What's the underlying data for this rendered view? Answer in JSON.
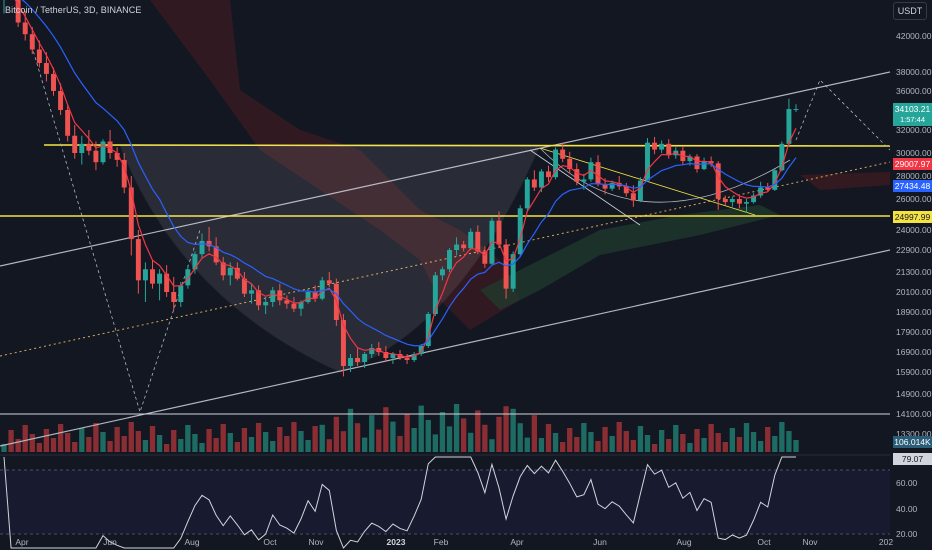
{
  "header": {
    "symbol_text": "Bitcoin / TetherUS, 3D, BINANCE",
    "currency_button": "USDT"
  },
  "colors": {
    "background": "#131722",
    "up": "#26a69a",
    "down": "#ef5350",
    "neckline": "#f5e342",
    "channel": "#b2b5be",
    "ema_fast": "#f23645",
    "ema_slow": "#2962ff",
    "rsi": "#d1d4dc"
  },
  "chart_data": {
    "type": "candlestick",
    "x_labels": [
      "Apr",
      "Jun",
      "Aug",
      "Oct",
      "Nov",
      "2023",
      "Feb",
      "Apr",
      "Jun",
      "Aug",
      "Oct",
      "Nov",
      "202"
    ],
    "y_ticks": [
      "42000.00",
      "38000.00",
      "36000.00",
      "32000.00",
      "30000.00",
      "28000.00",
      "26000.00",
      "24000.00",
      "22900.00",
      "21300.00",
      "20100.00",
      "18900.00",
      "17900.00",
      "16900.00",
      "15900.00",
      "14900.00",
      "14100.00",
      "13300.00"
    ],
    "price_tags": [
      {
        "label": "34103.21",
        "sub": "1:57:44",
        "color": "#26a69a"
      },
      {
        "label": "29007.97",
        "color": "#f23645"
      },
      {
        "label": "27434.48",
        "color": "#2962ff"
      },
      {
        "label": "24997.99",
        "color": "#f5e342"
      },
      {
        "label": "106.014K",
        "color": "#2a5d78"
      }
    ],
    "horizontal_levels": [
      30500,
      24998,
      14100
    ],
    "rsi": {
      "ticks": [
        "60.00",
        "40.00",
        "20.00"
      ],
      "value_tag": "79.07",
      "band": [
        30,
        70
      ]
    },
    "ohlc": [
      [
        46000,
        47500,
        44500,
        47000
      ],
      [
        47000,
        48500,
        46000,
        46500
      ],
      [
        46500,
        47200,
        43000,
        43500
      ],
      [
        43500,
        44800,
        41500,
        42200
      ],
      [
        42200,
        43000,
        40000,
        40500
      ],
      [
        40500,
        41500,
        38500,
        39000
      ],
      [
        39000,
        40200,
        37000,
        37800
      ],
      [
        37800,
        38500,
        35500,
        36000
      ],
      [
        36000,
        36800,
        33500,
        34000
      ],
      [
        34000,
        34500,
        31000,
        31500
      ],
      [
        31500,
        32500,
        29500,
        30000
      ],
      [
        30000,
        31500,
        29000,
        30800
      ],
      [
        30800,
        32000,
        29800,
        30200
      ],
      [
        30200,
        31000,
        28500,
        29200
      ],
      [
        29200,
        31200,
        29000,
        31000
      ],
      [
        31000,
        32000,
        29500,
        30000
      ],
      [
        30000,
        30500,
        28800,
        29400
      ],
      [
        29400,
        30000,
        26500,
        27000
      ],
      [
        27000,
        28000,
        22500,
        23500
      ],
      [
        23500,
        24000,
        20000,
        20800
      ],
      [
        20800,
        22000,
        19500,
        21500
      ],
      [
        21500,
        22200,
        20300,
        20600
      ],
      [
        20600,
        21500,
        19600,
        21200
      ],
      [
        21200,
        21800,
        19800,
        20100
      ],
      [
        20100,
        21000,
        19000,
        19500
      ],
      [
        19500,
        20700,
        19200,
        20500
      ],
      [
        20500,
        21800,
        20300,
        21500
      ],
      [
        21500,
        22800,
        21200,
        22600
      ],
      [
        22600,
        23800,
        22300,
        23400
      ],
      [
        23400,
        24200,
        22800,
        23100
      ],
      [
        23100,
        23600,
        21800,
        22000
      ],
      [
        22000,
        22400,
        20800,
        21100
      ],
      [
        21100,
        22000,
        20500,
        21600
      ],
      [
        21600,
        22000,
        20800,
        20900
      ],
      [
        20900,
        21300,
        19800,
        20000
      ],
      [
        20000,
        20600,
        19400,
        20200
      ],
      [
        20200,
        20500,
        19000,
        19300
      ],
      [
        19300,
        19800,
        18800,
        19500
      ],
      [
        19500,
        20400,
        19200,
        20200
      ],
      [
        20200,
        20600,
        19300,
        19600
      ],
      [
        19600,
        19900,
        19100,
        19400
      ],
      [
        19400,
        19800,
        18900,
        19100
      ],
      [
        19100,
        19600,
        18700,
        19500
      ],
      [
        19500,
        20300,
        19400,
        20100
      ],
      [
        20100,
        20500,
        19500,
        19700
      ],
      [
        19700,
        21000,
        19600,
        20800
      ],
      [
        20800,
        21300,
        20400,
        20600
      ],
      [
        20600,
        20900,
        18200,
        18500
      ],
      [
        18500,
        18800,
        15700,
        16200
      ],
      [
        16200,
        16800,
        15900,
        16600
      ],
      [
        16600,
        17100,
        16200,
        16400
      ],
      [
        16400,
        16900,
        16100,
        16800
      ],
      [
        16800,
        17300,
        16600,
        17100
      ],
      [
        17100,
        17400,
        16700,
        16900
      ],
      [
        16900,
        17200,
        16400,
        16600
      ],
      [
        16600,
        16900,
        16300,
        16800
      ],
      [
        16800,
        17000,
        16500,
        16600
      ],
      [
        16600,
        16800,
        16300,
        16500
      ],
      [
        16500,
        16900,
        16400,
        16800
      ],
      [
        16800,
        17300,
        16700,
        17200
      ],
      [
        17200,
        18900,
        17100,
        18800
      ],
      [
        18800,
        21300,
        18700,
        21100
      ],
      [
        21100,
        21700,
        20800,
        21500
      ],
      [
        21500,
        23000,
        21300,
        22900
      ],
      [
        22900,
        23600,
        22500,
        23200
      ],
      [
        23200,
        23400,
        22800,
        23000
      ],
      [
        23000,
        24100,
        22900,
        23900
      ],
      [
        23900,
        24300,
        22600,
        22800
      ],
      [
        22800,
        23100,
        21600,
        21900
      ],
      [
        21900,
        24800,
        21800,
        24600
      ],
      [
        24600,
        25200,
        23000,
        23200
      ],
      [
        23200,
        23500,
        19700,
        20300
      ],
      [
        20300,
        22800,
        20100,
        22600
      ],
      [
        22600,
        25600,
        22400,
        25400
      ],
      [
        25400,
        27900,
        25200,
        27700
      ],
      [
        27700,
        28500,
        26700,
        27000
      ],
      [
        27000,
        28600,
        26600,
        28400
      ],
      [
        28400,
        28900,
        27500,
        27900
      ],
      [
        27900,
        30500,
        27700,
        30300
      ],
      [
        30300,
        30900,
        29200,
        29500
      ],
      [
        29500,
        30100,
        28200,
        28600
      ],
      [
        28600,
        29100,
        27200,
        27500
      ],
      [
        27500,
        28200,
        26800,
        27700
      ],
      [
        27700,
        29600,
        27500,
        29200
      ],
      [
        29200,
        29800,
        27100,
        27300
      ],
      [
        27300,
        27800,
        26400,
        26900
      ],
      [
        26900,
        27600,
        26700,
        27400
      ],
      [
        27400,
        28000,
        26800,
        27100
      ],
      [
        27100,
        27400,
        26200,
        26500
      ],
      [
        26500,
        27200,
        25500,
        25900
      ],
      [
        25900,
        27900,
        25800,
        27600
      ],
      [
        27600,
        31300,
        27500,
        30900
      ],
      [
        30900,
        31400,
        29900,
        30300
      ],
      [
        30300,
        31100,
        30000,
        30800
      ],
      [
        30800,
        31200,
        29500,
        29800
      ],
      [
        29800,
        30500,
        29500,
        30200
      ],
      [
        30200,
        30600,
        29000,
        29300
      ],
      [
        29300,
        29900,
        28900,
        29700
      ],
      [
        29700,
        29900,
        28300,
        28600
      ],
      [
        28600,
        29600,
        28500,
        29300
      ],
      [
        29300,
        29700,
        28800,
        29100
      ],
      [
        29100,
        29300,
        25300,
        26000
      ],
      [
        26000,
        26300,
        25600,
        25800
      ],
      [
        25800,
        26200,
        25500,
        26000
      ],
      [
        26000,
        26300,
        25400,
        25700
      ],
      [
        25700,
        26000,
        25100,
        25800
      ],
      [
        25800,
        26500,
        25700,
        26300
      ],
      [
        26300,
        27500,
        26100,
        27000
      ],
      [
        27000,
        27400,
        26600,
        26800
      ],
      [
        26800,
        28600,
        26700,
        28500
      ],
      [
        28500,
        31000,
        28400,
        30800
      ],
      [
        30800,
        35200,
        30600,
        34100
      ],
      [
        34100,
        34600,
        33800,
        34103
      ]
    ],
    "ema_fast_desc": "red moving average",
    "ema_slow_desc": "blue moving average"
  }
}
